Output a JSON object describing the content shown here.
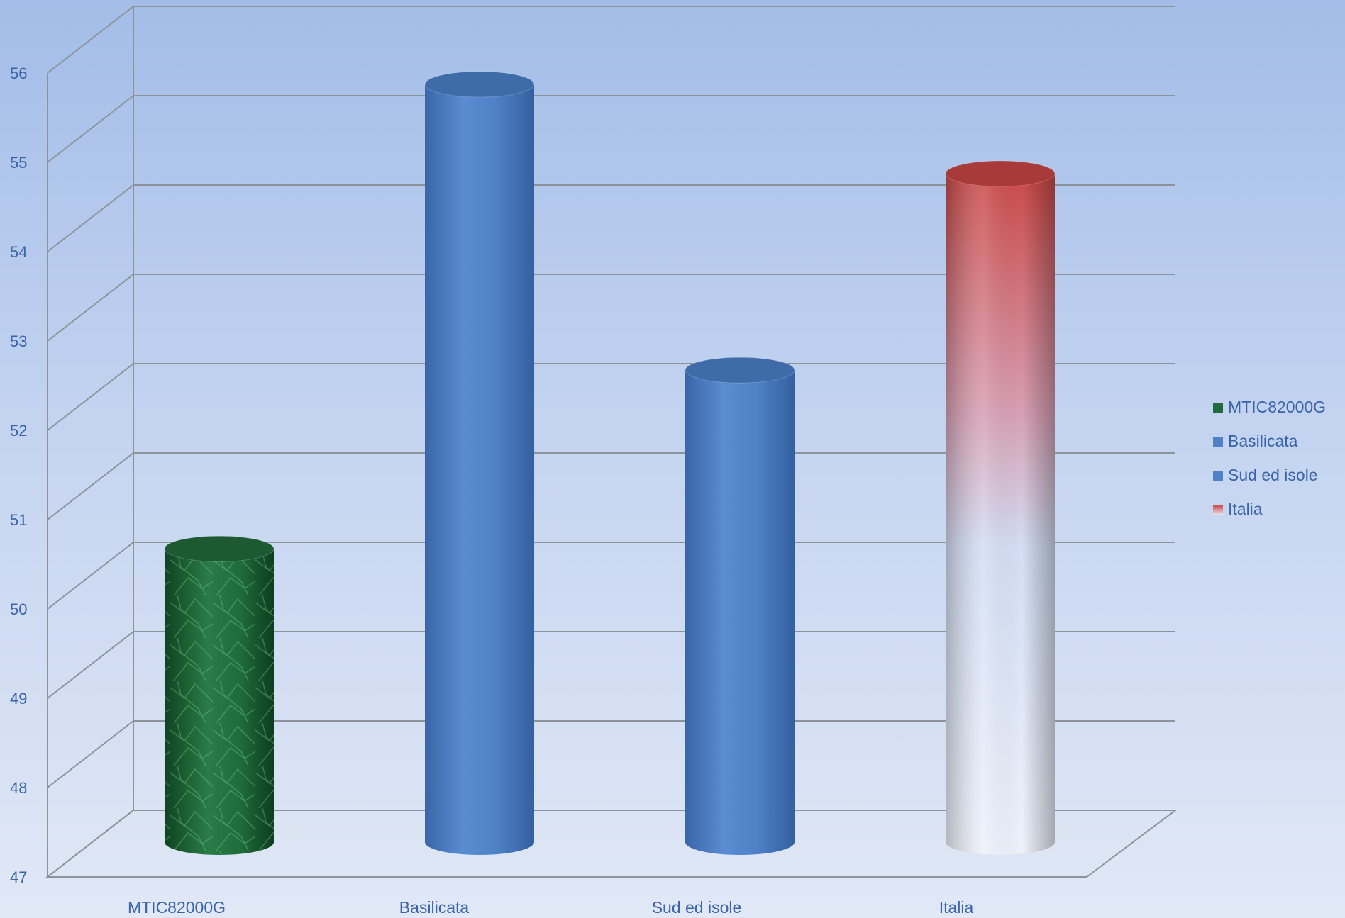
{
  "chart_data": {
    "type": "bar",
    "style": "3d-cylinder",
    "categories": [
      "MTIC82000G",
      "Basilicata",
      "Sud ed isole",
      "Italia"
    ],
    "values": [
      50.3,
      55.5,
      52.3,
      54.5
    ],
    "title": "",
    "xlabel": "",
    "ylabel": "",
    "ylim": [
      47,
      56
    ],
    "yticks": [
      "47",
      "48",
      "49",
      "50",
      "51",
      "52",
      "53",
      "54",
      "55",
      "56"
    ],
    "grid": true,
    "legend_position": "right",
    "legend": [
      {
        "label": "MTIC82000G",
        "color": "#1f6b3a"
      },
      {
        "label": "Basilicata",
        "color": "#4f81c7"
      },
      {
        "label": "Sud ed isole",
        "color": "#4f81c7"
      },
      {
        "label": "Italia",
        "color": "#d9534f"
      }
    ],
    "bar_colors": {
      "MTIC82000G": "#1f6b3a",
      "Basilicata": "#4f81c7",
      "Sud ed isole": "#4f81c7",
      "Italia_top": "#cc4a48",
      "Italia_bottom": "#e8eefa"
    }
  }
}
